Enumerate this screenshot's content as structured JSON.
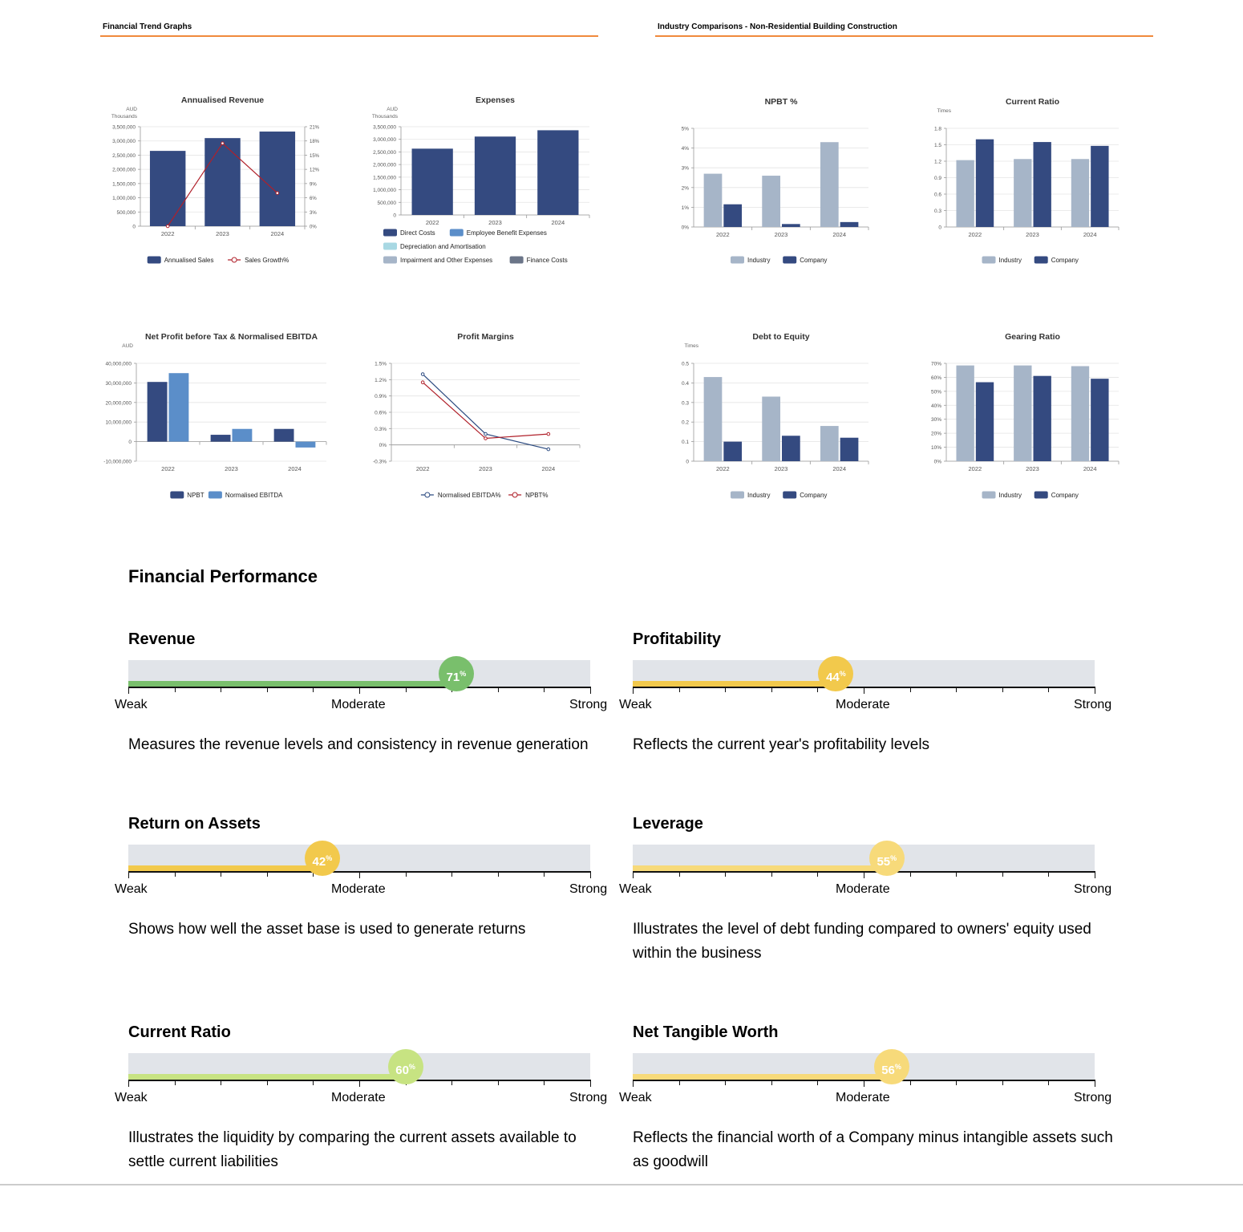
{
  "sections": {
    "left_title": "Financial Trend Graphs",
    "right_title": "Industry Comparisons - Non-Residential Building Construction"
  },
  "chart_data": [
    {
      "id": "annualised-revenue",
      "type": "bar",
      "title": "Annualised Revenue",
      "yunit": "AUD\nThousands",
      "categories": [
        "2022",
        "2023",
        "2024"
      ],
      "ylim": [
        0,
        3500000
      ],
      "yticks": [
        "3,500,000",
        "3,000,000",
        "2,500,000",
        "2,000,000",
        "1,500,000",
        "1,000,000",
        "500,000",
        "0"
      ],
      "y2lim": [
        0,
        21
      ],
      "y2ticks": [
        "21%",
        "18%",
        "15%",
        "12%",
        "9%",
        "6%",
        "3%",
        "0%"
      ],
      "series": [
        {
          "name": "Annualised Sales",
          "kind": "bar",
          "color": "#344a80",
          "values": [
            2650000,
            3100000,
            3330000
          ]
        },
        {
          "name": "Sales Growth%",
          "kind": "line",
          "axis": "right",
          "color": "#b0202a",
          "values": [
            0,
            17.5,
            7
          ]
        }
      ]
    },
    {
      "id": "expenses",
      "type": "bar",
      "title": "Expenses",
      "yunit": "AUD\nThousands",
      "categories": [
        "2022",
        "2023",
        "2024"
      ],
      "ylim": [
        0,
        3500000
      ],
      "yticks": [
        "3,500,000",
        "3,000,000",
        "2,500,000",
        "2,000,000",
        "1,500,000",
        "1,000,000",
        "500,000",
        "0"
      ],
      "series": [
        {
          "name": "Direct Costs",
          "kind": "bar",
          "color": "#344a80",
          "values": [
            2630000,
            3110000,
            3360000
          ]
        },
        {
          "name": "Employee Benefit Expenses",
          "kind": "bar",
          "color": "#5b8ec9",
          "values": [
            0,
            0,
            0
          ]
        },
        {
          "name": "Depreciation and Amortisation",
          "kind": "bar",
          "color": "#a8d8e3",
          "values": [
            0,
            0,
            0
          ]
        },
        {
          "name": "Impairment and Other Expenses",
          "kind": "bar",
          "color": "#a6b5c8",
          "values": [
            0,
            0,
            0
          ]
        },
        {
          "name": "Finance Costs",
          "kind": "bar",
          "color": "#6b7588",
          "values": [
            0,
            0,
            0
          ]
        }
      ]
    },
    {
      "id": "npbt-pct",
      "type": "bar",
      "title": "NPBT %",
      "yunit": "",
      "categories": [
        "2022",
        "2023",
        "2024"
      ],
      "ylim": [
        0,
        5
      ],
      "yticks": [
        "5%",
        "4%",
        "3%",
        "2%",
        "1%",
        "0%"
      ],
      "series": [
        {
          "name": "Industry",
          "kind": "bar",
          "color": "#a6b5c8",
          "values": [
            2.7,
            2.6,
            4.3
          ]
        },
        {
          "name": "Company",
          "kind": "bar",
          "color": "#344a80",
          "values": [
            1.15,
            0.15,
            0.25
          ]
        }
      ]
    },
    {
      "id": "current-ratio-chart",
      "type": "bar",
      "title": "Current Ratio",
      "yunit": "Times",
      "categories": [
        "2022",
        "2023",
        "2024"
      ],
      "ylim": [
        0,
        1.8
      ],
      "yticks": [
        "1.8",
        "1.5",
        "1.2",
        "0.9",
        "0.6",
        "0.3",
        "0"
      ],
      "series": [
        {
          "name": "Industry",
          "kind": "bar",
          "color": "#a6b5c8",
          "values": [
            1.22,
            1.24,
            1.24
          ]
        },
        {
          "name": "Company",
          "kind": "bar",
          "color": "#344a80",
          "values": [
            1.6,
            1.55,
            1.48
          ]
        }
      ]
    },
    {
      "id": "npbt-ebitda",
      "type": "bar",
      "title": "Net Profit before Tax & Normalised EBITDA",
      "yunit": "AUD",
      "categories": [
        "2022",
        "2023",
        "2024"
      ],
      "ylim": [
        -10000000,
        40000000
      ],
      "yticks": [
        "40,000,000",
        "30,000,000",
        "20,000,000",
        "10,000,000",
        "0",
        "-10,000,000"
      ],
      "series": [
        {
          "name": "NPBT",
          "kind": "bar",
          "color": "#344a80",
          "values": [
            30500000,
            3500000,
            6500000
          ]
        },
        {
          "name": "Normalised EBITDA",
          "kind": "bar",
          "color": "#5b8ec9",
          "values": [
            35000000,
            6500000,
            -3000000
          ]
        }
      ]
    },
    {
      "id": "profit-margins",
      "type": "line",
      "title": "Profit Margins",
      "yunit": "",
      "categories": [
        "2022",
        "2023",
        "2024"
      ],
      "ylim": [
        -0.3,
        1.5
      ],
      "yticks": [
        "1.5%",
        "1.2%",
        "0.9%",
        "0.6%",
        "0.3%",
        "0%",
        "-0.3%"
      ],
      "series": [
        {
          "name": "Normalised EBITDA%",
          "kind": "line",
          "color": "#2b4a80",
          "values": [
            1.3,
            0.2,
            -0.08
          ]
        },
        {
          "name": "NPBT%",
          "kind": "line",
          "color": "#b0202a",
          "values": [
            1.15,
            0.12,
            0.2
          ]
        }
      ]
    },
    {
      "id": "debt-to-equity",
      "type": "bar",
      "title": "Debt to Equity",
      "yunit": "Times",
      "categories": [
        "2022",
        "2023",
        "2024"
      ],
      "ylim": [
        0,
        0.5
      ],
      "yticks": [
        "0.5",
        "0.4",
        "0.3",
        "0.2",
        "0.1",
        "0"
      ],
      "series": [
        {
          "name": "Industry",
          "kind": "bar",
          "color": "#a6b5c8",
          "values": [
            0.43,
            0.33,
            0.18
          ]
        },
        {
          "name": "Company",
          "kind": "bar",
          "color": "#344a80",
          "values": [
            0.1,
            0.13,
            0.12
          ]
        }
      ]
    },
    {
      "id": "gearing-ratio",
      "type": "bar",
      "title": "Gearing Ratio",
      "yunit": "",
      "categories": [
        "2022",
        "2023",
        "2024"
      ],
      "ylim": [
        0,
        70
      ],
      "yticks": [
        "70%",
        "60%",
        "50%",
        "40%",
        "30%",
        "20%",
        "10%",
        "0%"
      ],
      "series": [
        {
          "name": "Industry",
          "kind": "bar",
          "color": "#a6b5c8",
          "values": [
            68.5,
            68.5,
            68
          ]
        },
        {
          "name": "Company",
          "kind": "bar",
          "color": "#344a80",
          "values": [
            56.5,
            61,
            59
          ]
        }
      ]
    }
  ],
  "performance": {
    "heading": "Financial Performance",
    "scale": {
      "weak": "Weak",
      "moderate": "Moderate",
      "strong": "Strong"
    },
    "percent_sign": "%",
    "metrics": [
      {
        "title": "Revenue",
        "value": 71,
        "color": "#79bf6c",
        "description": "Measures the revenue levels and consistency in revenue generation"
      },
      {
        "title": "Profitability",
        "value": 44,
        "color": "#f2c94c",
        "description": "Reflects the current year's profitability levels"
      },
      {
        "title": "Return on Assets",
        "value": 42,
        "color": "#f2c94c",
        "description": "Shows how well the asset base is used to generate returns"
      },
      {
        "title": "Leverage",
        "value": 55,
        "color": "#f7da7a",
        "description": "Illustrates the level of debt funding compared to owners' equity used within the business"
      },
      {
        "title": "Current Ratio",
        "value": 60,
        "color": "#c7e382",
        "description": "Illustrates the liquidity by comparing the current assets available to settle current liabilities"
      },
      {
        "title": "Net Tangible Worth",
        "value": 56,
        "color": "#f7da7a",
        "description": "Reflects the financial worth of a Company minus intangible assets such as goodwill"
      }
    ]
  }
}
